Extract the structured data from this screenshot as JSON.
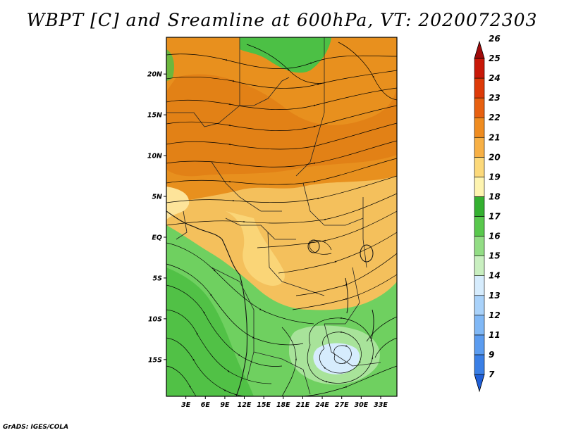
{
  "title": "WBPT [C] and Sreamline at 600hPa, VT: 2020072303",
  "credit": "GrADS: IGES/COLA",
  "map": {
    "lon_range": [
      0,
      35.5
    ],
    "lat_range": [
      -19.5,
      24.5
    ],
    "x_ticks": [
      {
        "value": 3,
        "label": "3E"
      },
      {
        "value": 6,
        "label": "6E"
      },
      {
        "value": 9,
        "label": "9E"
      },
      {
        "value": 12,
        "label": "12E"
      },
      {
        "value": 15,
        "label": "15E"
      },
      {
        "value": 18,
        "label": "18E"
      },
      {
        "value": 21,
        "label": "21E"
      },
      {
        "value": 24,
        "label": "24E"
      },
      {
        "value": 27,
        "label": "27E"
      },
      {
        "value": 30,
        "label": "30E"
      },
      {
        "value": 33,
        "label": "33E"
      }
    ],
    "y_ticks": [
      {
        "value": 20,
        "label": "20N"
      },
      {
        "value": 15,
        "label": "15N"
      },
      {
        "value": 10,
        "label": "10N"
      },
      {
        "value": 5,
        "label": "5N"
      },
      {
        "value": 0,
        "label": "EQ"
      },
      {
        "value": -5,
        "label": "5S"
      },
      {
        "value": -10,
        "label": "10S"
      },
      {
        "value": -15,
        "label": "15S"
      }
    ]
  },
  "colorbar": {
    "levels": [
      "7",
      "9",
      "11",
      "12",
      "13",
      "14",
      "15",
      "16",
      "17",
      "18",
      "19",
      "20",
      "21",
      "22",
      "23",
      "24",
      "25",
      "26"
    ],
    "colors": [
      "#1f5fd8",
      "#3a7fe6",
      "#5b9cf0",
      "#80b8f6",
      "#a9d2fa",
      "#d6ecfd",
      "#c9efc0",
      "#93dd85",
      "#59c84d",
      "#34b030",
      "#fef4b0",
      "#fcd97a",
      "#f7b045",
      "#ef8c20",
      "#e76010",
      "#dd3a08",
      "#c81808",
      "#a00a0a"
    ]
  }
}
